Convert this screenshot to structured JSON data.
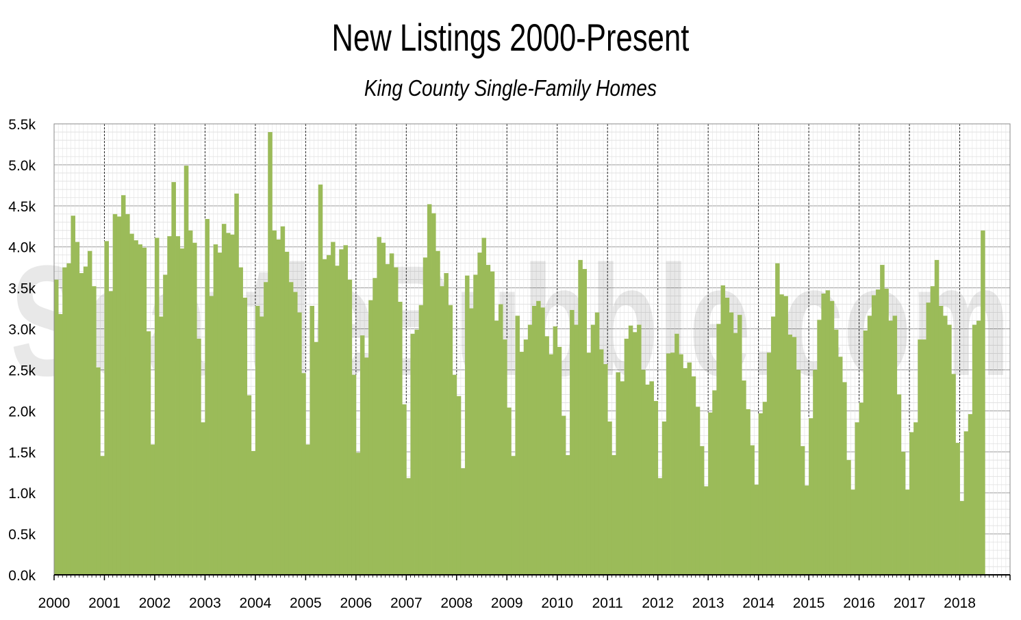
{
  "chart_data": {
    "type": "bar",
    "title": "New Listings 2000-Present",
    "subtitle": "King County Single-Family Homes",
    "xlabel": "",
    "ylabel": "",
    "watermark": "SeattleBubble.com",
    "ylim": [
      0,
      5500
    ],
    "y_ticks": [
      "0.0k",
      "0.5k",
      "1.0k",
      "1.5k",
      "2.0k",
      "2.5k",
      "3.0k",
      "3.5k",
      "4.0k",
      "4.5k",
      "5.0k",
      "5.5k"
    ],
    "x_ticks": [
      "2000",
      "2001",
      "2002",
      "2003",
      "2004",
      "2005",
      "2006",
      "2007",
      "2008",
      "2009",
      "2010",
      "2011",
      "2012",
      "2013",
      "2014",
      "2015",
      "2016",
      "2017",
      "2018"
    ],
    "bar_color": "#9bbb59",
    "grid": true,
    "start": "2000-01",
    "values": [
      3600,
      3180,
      3750,
      3800,
      4380,
      4060,
      3680,
      3760,
      3950,
      3520,
      2530,
      1450,
      4070,
      3460,
      4400,
      4370,
      4630,
      4400,
      4160,
      4080,
      4030,
      3990,
      2970,
      1590,
      4110,
      3150,
      3660,
      4130,
      4790,
      4130,
      3980,
      4990,
      4200,
      4050,
      2880,
      1860,
      4340,
      3400,
      4030,
      3930,
      4280,
      4170,
      4150,
      4650,
      3750,
      3380,
      2190,
      1510,
      3280,
      3150,
      3570,
      5400,
      4200,
      4090,
      4250,
      3940,
      3570,
      3450,
      3200,
      2460,
      1590,
      3280,
      2840,
      4760,
      3850,
      3900,
      4060,
      3770,
      3970,
      4020,
      3600,
      2440,
      1490,
      2920,
      2650,
      3350,
      3620,
      4120,
      4050,
      3790,
      3920,
      3750,
      3330,
      2080,
      1180,
      2940,
      2990,
      3290,
      3870,
      4520,
      4410,
      3950,
      3520,
      3680,
      3290,
      2440,
      2180,
      1300,
      3650,
      3250,
      3660,
      3930,
      4110,
      3780,
      3700,
      3100,
      3300,
      2870,
      2040,
      1450,
      3160,
      2720,
      2870,
      3050,
      3280,
      3340,
      3260,
      2910,
      2690,
      3030,
      2780,
      1940,
      1460,
      3230,
      3050,
      3840,
      3730,
      2710,
      3050,
      3200,
      2750,
      2570,
      1870,
      1460,
      2470,
      2360,
      2880,
      3040,
      2960,
      3050,
      2500,
      2320,
      2360,
      2120,
      1180,
      1870,
      2700,
      2710,
      2940,
      2690,
      2520,
      2590,
      2420,
      2050,
      1570,
      1080,
      1980,
      2250,
      3060,
      3530,
      3380,
      3200,
      2950,
      3170,
      2370,
      2020,
      1580,
      1100,
      1970,
      2110,
      2710,
      3150,
      3800,
      3420,
      3400,
      2930,
      2900,
      2500,
      1570,
      1090,
      1910,
      2500,
      3110,
      3430,
      3470,
      3340,
      2990,
      2660,
      2350,
      1400,
      1040,
      1860,
      2100,
      2980,
      3160,
      3410,
      3480,
      3780,
      3490,
      3100,
      3160,
      2200,
      1500,
      1040,
      1740,
      1860,
      2870,
      2870,
      3320,
      3520,
      3840,
      3280,
      3160,
      3050,
      2450,
      1610,
      900,
      1750,
      1960,
      3050,
      3100,
      4200
    ]
  }
}
